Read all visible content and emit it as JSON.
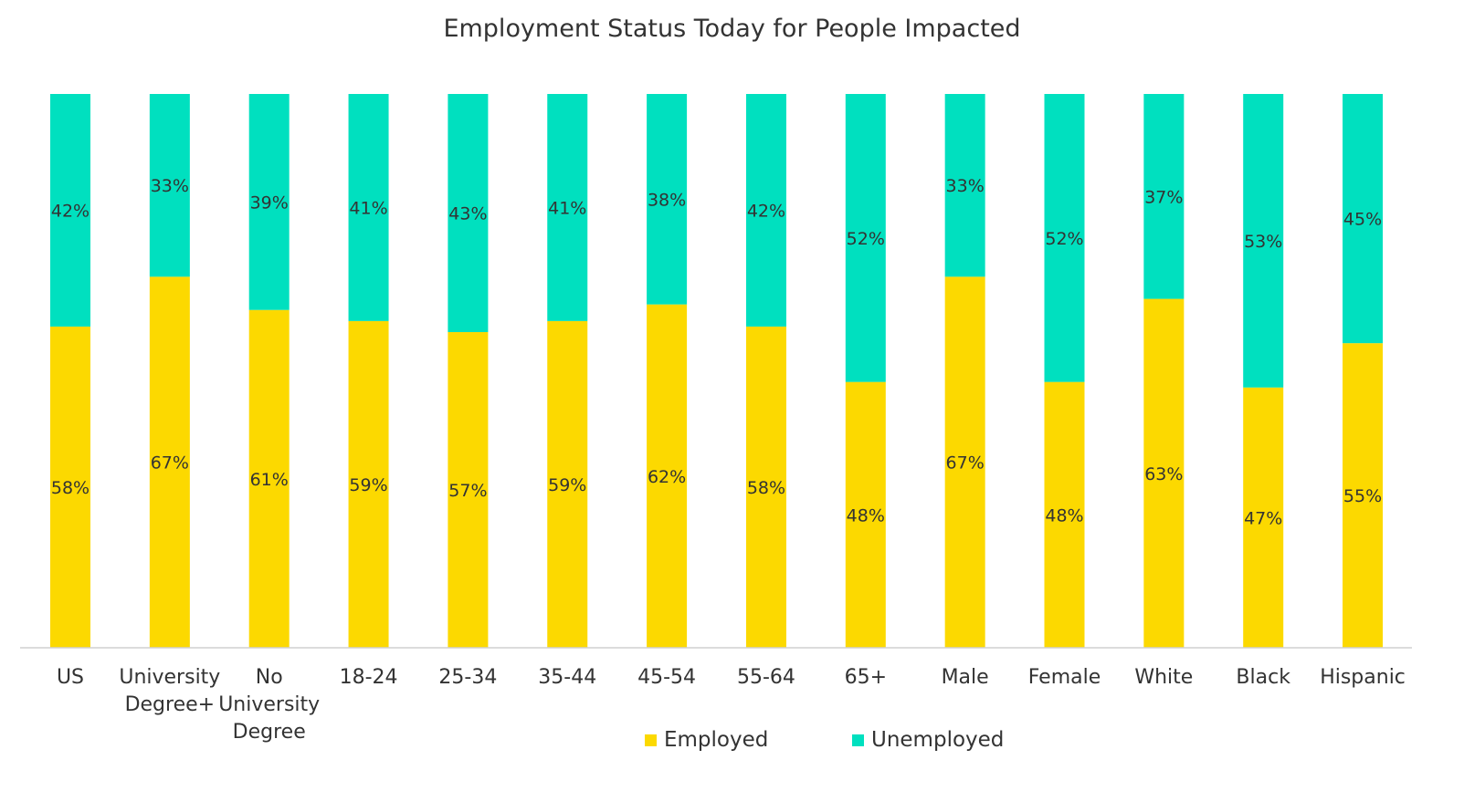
{
  "chart_data": {
    "type": "bar",
    "stacked": true,
    "normalized": true,
    "title": "Employment Status Today for People Impacted",
    "xlabel": "",
    "ylabel": "",
    "ylim": [
      0,
      100
    ],
    "grid": false,
    "legend_position": "bottom",
    "categories": [
      [
        "US"
      ],
      [
        "University",
        "Degree+"
      ],
      [
        "No",
        "University",
        "Degree"
      ],
      [
        "18-24"
      ],
      [
        "25-34"
      ],
      [
        "35-44"
      ],
      [
        "45-54"
      ],
      [
        "55-64"
      ],
      [
        "65+"
      ],
      [
        "Male"
      ],
      [
        "Female"
      ],
      [
        "White"
      ],
      [
        "Black"
      ],
      [
        "Hispanic"
      ]
    ],
    "series": [
      {
        "name": "Employed",
        "color": "#fcd900",
        "values": [
          58,
          67,
          61,
          59,
          57,
          59,
          62,
          58,
          48,
          67,
          48,
          63,
          47,
          55
        ]
      },
      {
        "name": "Unemployed",
        "color": "#00e0bf",
        "values": [
          42,
          33,
          39,
          41,
          43,
          41,
          38,
          42,
          52,
          33,
          52,
          37,
          53,
          45
        ]
      }
    ],
    "value_suffix": "%"
  }
}
